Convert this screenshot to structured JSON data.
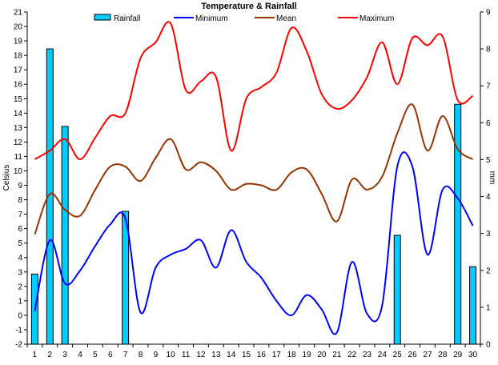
{
  "chart_data": {
    "type": "bar+line",
    "title": "Temperature & Rainfall",
    "xlabel": "",
    "ylabel": "Celsius",
    "y2label": "mm",
    "ylim": [
      -2,
      21
    ],
    "y2lim": [
      0,
      9
    ],
    "grid": false,
    "legend_position": "top",
    "categories": [
      "1",
      "2",
      "3",
      "4",
      "5",
      "6",
      "7",
      "8",
      "9",
      "10",
      "11",
      "12",
      "13",
      "14",
      "15",
      "16",
      "17",
      "18",
      "19",
      "20",
      "21",
      "22",
      "23",
      "24",
      "25",
      "26",
      "27",
      "28",
      "29",
      "30"
    ],
    "series": [
      {
        "name": "Rainfall",
        "type": "bar",
        "axis": "right",
        "color": "#00ccff",
        "values": [
          1.9,
          8.0,
          5.9,
          0,
          0,
          0,
          3.6,
          0,
          0,
          0,
          0,
          0,
          0,
          0,
          0,
          0,
          0,
          0,
          0,
          0,
          0,
          0,
          0,
          0,
          2.95,
          0,
          0,
          0,
          6.5,
          2.1
        ]
      },
      {
        "name": "Minimum",
        "type": "line",
        "axis": "left",
        "color": "#0000ff",
        "values": [
          0.3,
          5.2,
          2.2,
          3.1,
          4.8,
          6.3,
          6.7,
          0.2,
          3.3,
          4.2,
          4.6,
          5.2,
          3.3,
          5.9,
          3.7,
          2.6,
          1.0,
          0.0,
          1.4,
          0.4,
          -1.2,
          3.7,
          0.1,
          0.7,
          10.3,
          10.3,
          4.2,
          8.7,
          8.1,
          6.2
        ]
      },
      {
        "name": "Mean",
        "type": "line",
        "axis": "left",
        "color": "#993300",
        "values": [
          5.6,
          8.4,
          7.3,
          6.9,
          8.7,
          10.3,
          10.3,
          9.3,
          10.9,
          12.2,
          10.1,
          10.6,
          10.0,
          8.7,
          9.1,
          9.0,
          8.7,
          9.9,
          10.1,
          8.4,
          6.5,
          9.4,
          8.7,
          9.6,
          12.6,
          14.6,
          11.4,
          13.8,
          11.5,
          10.8
        ]
      },
      {
        "name": "Maximum",
        "type": "line",
        "axis": "left",
        "color": "#ff0000",
        "values": [
          10.8,
          11.4,
          12.2,
          10.8,
          12.3,
          13.8,
          14.0,
          17.8,
          18.9,
          20.2,
          15.6,
          16.2,
          16.5,
          11.4,
          15.0,
          15.8,
          16.8,
          19.9,
          18.3,
          15.3,
          14.3,
          14.9,
          16.5,
          18.9,
          16.0,
          19.2,
          18.7,
          19.3,
          14.9,
          15.2
        ]
      }
    ],
    "yticks": [
      "-2",
      "-1",
      "0",
      "1",
      "2",
      "3",
      "4",
      "5",
      "6",
      "7",
      "8",
      "9",
      "10",
      "11",
      "12",
      "13",
      "14",
      "15",
      "16",
      "17",
      "18",
      "19",
      "20",
      "21"
    ],
    "y2ticks": [
      "0",
      "1",
      "2",
      "3",
      "4",
      "5",
      "6",
      "7",
      "8",
      "9"
    ]
  }
}
